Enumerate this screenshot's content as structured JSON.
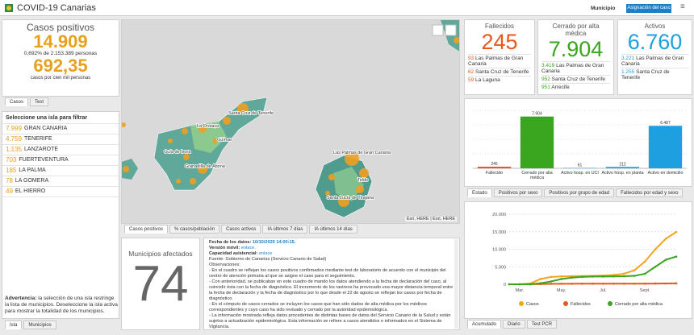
{
  "header": {
    "title": "COVID-19 Canarias",
    "filter_label": "Municipio",
    "button": "Asignación del caso"
  },
  "summary": {
    "title": "Casos positivos",
    "total": "14.909",
    "percent_text": "0,692% de 2.153.389 personas",
    "rate": "692,35",
    "rate_text": "casos por cien mil personas",
    "color": "#e8a11d",
    "tabs": [
      "Casos",
      "Test"
    ]
  },
  "islands": {
    "title": "Seleccione una isla para filtrar",
    "color": "#e8a11d",
    "rows": [
      {
        "value": "7.999",
        "name": "GRAN CANARIA"
      },
      {
        "value": "4.759",
        "name": "TENERIFE"
      },
      {
        "value": "1.135",
        "name": "LANZAROTE"
      },
      {
        "value": "703",
        "name": "FUERTEVENTURA"
      },
      {
        "value": "185",
        "name": "LA PALMA"
      },
      {
        "value": "78",
        "name": "LA GOMERA"
      },
      {
        "value": "49",
        "name": "EL HIERRO"
      }
    ],
    "warning_label": "Advertencia:",
    "warning": "la selección de una isla restringe la lista de municipios. Deseleccione la isla activa para mostrar la totalidad de los municipios.",
    "tabs": [
      "Isla",
      "Municipios"
    ]
  },
  "map": {
    "labels": [
      "La Orotava",
      "Santa Cruz de Tenerife",
      "Guía de Isora",
      "Granadilla de Abona",
      "Güímar",
      "Las Palmas de Gran Canaria",
      "Telde",
      "Santa Lucía de Tirajana"
    ],
    "attribution": "Esri, HERE | Esri, HERE",
    "tabs": [
      "Casos positivos",
      "% casos/población",
      "Casos activos",
      "IA últimos 7 días",
      "IA últimos 14 días"
    ]
  },
  "municipalities": {
    "title": "Municipios afectados",
    "value": "74"
  },
  "notes": {
    "date_label": "Fecha de los datos:",
    "date": "10/10/2020 14:00:15.",
    "mobile_label": "Versión móvil:",
    "mobile_link": "enlace.",
    "capacity_label": "Capacidad asistencial:",
    "capacity_link": "enlace",
    "source": "Fuente: Gobierno de Canarias (Servicio Canario de Salud)",
    "observations": "Observaciones:",
    "items": [
      "- En el cuadro se reflejan los casos positivos confirmados mediante test de laboratorio de acuerdo con el municipio del centro de atención primaria al que se asigne el caso para el seguimiento.",
      "- Con anterioridad, se publicaban en este cuadro de mando los datos atendiendo a la fecha de declaración del caso, al coincidir ésta con la fecha de diagnóstico. El incremento de los rastreos ha provocado una mayor distancia temporal entre la fecha de declaración y la fecha de diagnóstico por lo que desde el 22 de agosto se reflejan los casos por fecha de diagnóstico.",
      "- En el cómputo de casos cerrados se incluyen los casos que han sido dados de alta médica por los médicos correspondientes y cuyo caso ha sido revisado y cerrado por la autoridad epidemiológica.",
      "- La información mostrada refleja datos procedentes de distintas bases de datos del Servicio Canario de la Salud y están sujetos a actualización epidemiológica. Esta información se refiere a casos atendidos e informados en el Sistema de Vigilancia."
    ]
  },
  "stats": [
    {
      "title": "Fallecidos",
      "value": "245",
      "color": "#e8581a",
      "rows": [
        {
          "value": "93",
          "name": "Las Palmas de Gran Canaria"
        },
        {
          "value": "62",
          "name": "Santa Cruz de Tenerife"
        },
        {
          "value": "59",
          "name": "La Laguna"
        }
      ]
    },
    {
      "title": "Cerrado por alta médica",
      "value": "7.904",
      "color": "#3aa51f",
      "rows": [
        {
          "value": "3.419",
          "name": "Las Palmas de Gran Canaria"
        },
        {
          "value": "952",
          "name": "Santa Cruz de Tenerife"
        },
        {
          "value": "951",
          "name": "Arrecife"
        }
      ]
    },
    {
      "title": "Activos",
      "value": "6.760",
      "color": "#1e9fe0",
      "rows": [
        {
          "value": "3.221",
          "name": "Las Palmas de Gran Canaria"
        },
        {
          "value": "1.255",
          "name": "Santa Cruz de Tenerife"
        }
      ]
    }
  ],
  "bar_chart": {
    "type": "bar",
    "categories": [
      "Fallecido",
      "Cerrado por alta médica",
      "Activo hosp. en UCI",
      "Activo hosp. en planta",
      "Activo en domicilio"
    ],
    "values": [
      245,
      7904,
      61,
      212,
      6487
    ],
    "value_labels": [
      "245",
      "7.904",
      "61",
      "212",
      "6.487"
    ],
    "colors": [
      "#e8581a",
      "#3aa51f",
      "#1e9fe0",
      "#1e9fe0",
      "#1e9fe0"
    ],
    "tabs": [
      "Estado",
      "Positivos por sexo",
      "Positivos por grupo de edad",
      "Fallecidos por edad y sexo"
    ]
  },
  "line_chart": {
    "type": "line",
    "categories": [
      null,
      "Mar.",
      null,
      null,
      null,
      "May.",
      null,
      null,
      null,
      "Jul.",
      null,
      null,
      null,
      "Sept.",
      null,
      null,
      null
    ],
    "series": [
      {
        "name": "Casos",
        "color": "#f2a51c",
        "values": [
          0,
          0,
          200,
          1500,
          2100,
          2250,
          2300,
          2350,
          2400,
          2500,
          2650,
          3000,
          4000,
          6500,
          10000,
          13000,
          14909
        ]
      },
      {
        "name": "Fallecidos",
        "color": "#e8581a",
        "values": [
          0,
          0,
          5,
          60,
          120,
          145,
          155,
          160,
          162,
          162,
          163,
          164,
          170,
          185,
          205,
          230,
          245
        ]
      },
      {
        "name": "Cerrado por alta médica",
        "color": "#3aa51f",
        "values": [
          0,
          0,
          0,
          300,
          800,
          1500,
          1900,
          2100,
          2200,
          2200,
          2250,
          2300,
          2400,
          3000,
          5000,
          7000,
          7904
        ]
      }
    ],
    "ylim": [
      0,
      20000
    ],
    "yticks": [
      0,
      {
        "value": 5000,
        "label": "5.000"
      },
      {
        "value": 10000,
        "label": "10.000"
      },
      {
        "value": 15000,
        "label": "15.000"
      },
      {
        "value": 20000,
        "label": "20.000"
      }
    ],
    "grid": true,
    "tabs": [
      "Acumulado",
      "Diario",
      "Test PCR"
    ]
  }
}
